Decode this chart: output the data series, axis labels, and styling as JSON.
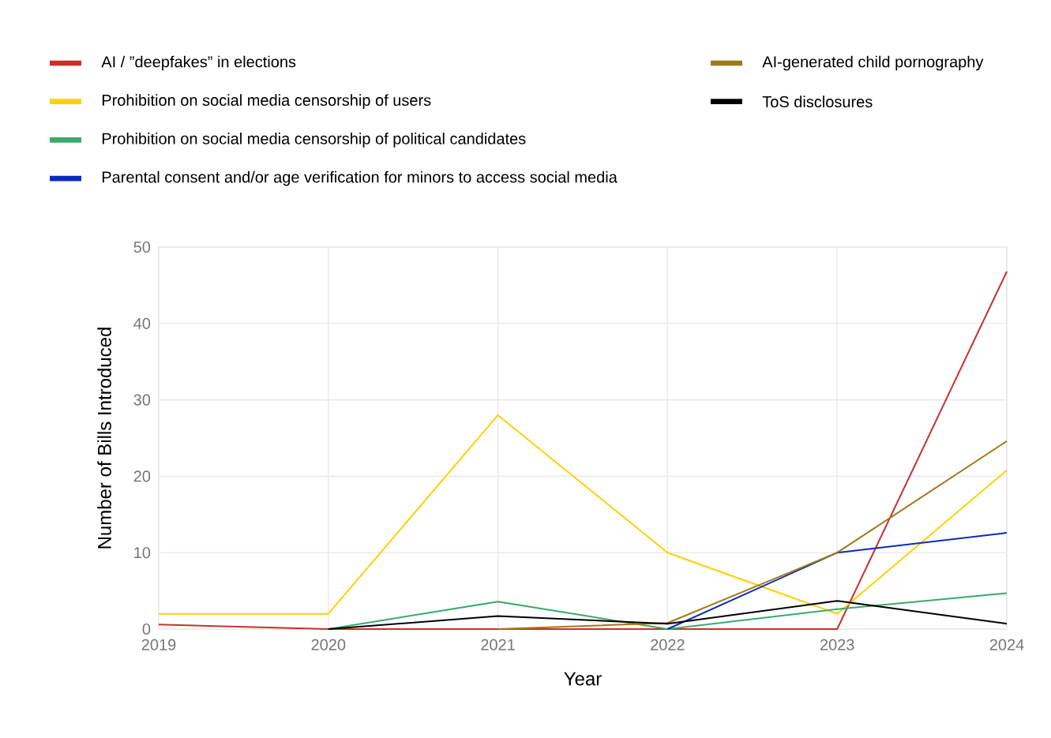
{
  "chart_data": {
    "type": "line",
    "xlabel": "Year",
    "ylabel": "Number of Bills Introduced",
    "x": [
      2019,
      2020,
      2021,
      2022,
      2023,
      2024
    ],
    "series": [
      {
        "name": "AI / ”deepfakes” in elections",
        "color": "#c9302c",
        "values": [
          0.6,
          0,
          0,
          0,
          0,
          46.8
        ]
      },
      {
        "name": "Prohibition on social media censorship of users",
        "color": "#ffd000",
        "values": [
          2,
          2,
          28,
          10,
          2,
          20.8
        ]
      },
      {
        "name": "Prohibition on social media censorship of political candidates",
        "color": "#3aaa6a",
        "values": [
          null,
          0,
          3.6,
          0,
          2.6,
          4.7
        ]
      },
      {
        "name": "Parental consent and/or age verification for minors to access social media",
        "color": "#0a2bbf",
        "values": [
          null,
          null,
          null,
          0,
          10,
          12.6
        ]
      },
      {
        "name": "AI-generated child pornography",
        "color": "#a07818",
        "values": [
          null,
          null,
          0,
          0.8,
          10,
          24.6
        ]
      },
      {
        "name": "ToS disclosures",
        "color": "#000000",
        "values": [
          null,
          0,
          1.7,
          0.7,
          3.7,
          0.7
        ]
      }
    ],
    "xlim": [
      2019,
      2024
    ],
    "ylim": [
      0,
      50
    ],
    "xticks": [
      2019,
      2020,
      2021,
      2022,
      2023,
      2024
    ],
    "yticks": [
      0,
      10,
      20,
      30,
      40,
      50
    ],
    "grid": true,
    "legend": "top",
    "marker": "none",
    "line_style": "solid"
  }
}
